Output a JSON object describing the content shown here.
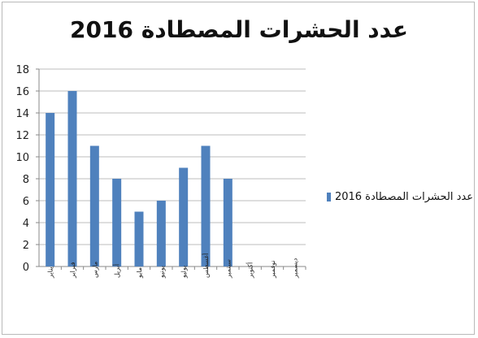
{
  "chart_data": {
    "type": "bar",
    "title": "عدد الحشرات المصطادة 2016",
    "ylim": [
      0,
      18
    ],
    "yticks": [
      0,
      2,
      4,
      6,
      8,
      10,
      12,
      14,
      16,
      18
    ],
    "categories": [
      "يناير",
      "فبراير",
      "مارس",
      "أبريل",
      "مايو",
      "يونيو",
      "يوليو",
      "أغسطس",
      "سبتمبر",
      "أكتوبر",
      "نوفمبر",
      "ديسمبر"
    ],
    "series": [
      {
        "name": "عدد الحشرات المصطادة 2016",
        "values": [
          14,
          16,
          11,
          8,
          5,
          6,
          9,
          11,
          8,
          0,
          0,
          0
        ]
      }
    ],
    "legend_position": "right",
    "grid": true,
    "bar_color": "#4f81bd"
  }
}
